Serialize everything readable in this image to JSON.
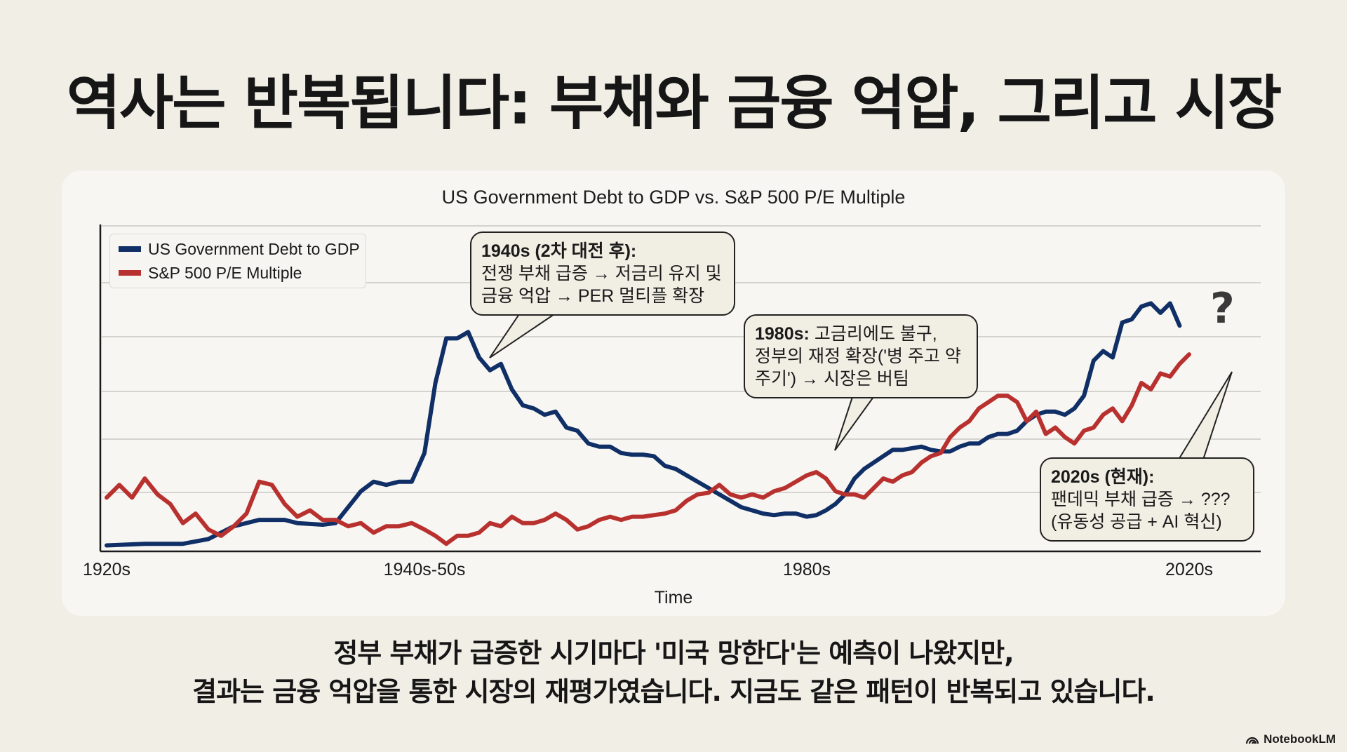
{
  "page": {
    "title": "역사는 반복됩니다: 부채와 금융 억압, 그리고 시장",
    "caption_line1": "정부 부채가 급증한 시기마다 '미국 망한다'는 예측이 나왔지만,",
    "caption_line2": "결과는 금융 억압을 통한 시장의 재평가였습니다. 지금도 같은 패턴이 반복되고 있습니다.",
    "brand": "NotebookLM"
  },
  "chart_data": {
    "type": "line",
    "title": "US Government Debt to GDP vs. S&P 500 P/E Multiple",
    "xlabel": "Time",
    "ylabel": "",
    "x_tick_labels": [
      "1920s",
      "1940s-50s",
      "1980s",
      "2020s"
    ],
    "x_ticks": [
      1920,
      1945,
      1980,
      2020
    ],
    "xlim": [
      1920,
      2026
    ],
    "ylim": [
      0,
      100
    ],
    "grid": true,
    "legend_position": "top-left",
    "colors": {
      "debt": "#0f2f66",
      "pe": "#b8312f"
    },
    "series": [
      {
        "name": "US Government Debt to GDP",
        "key": "debt",
        "points": [
          [
            1920,
            1
          ],
          [
            1923,
            1.5
          ],
          [
            1926,
            1.5
          ],
          [
            1928,
            3
          ],
          [
            1930,
            7
          ],
          [
            1932,
            9
          ],
          [
            1934,
            9
          ],
          [
            1935,
            8
          ],
          [
            1937,
            7.5
          ],
          [
            1938,
            8
          ],
          [
            1940,
            18
          ],
          [
            1941,
            21
          ],
          [
            1942,
            20
          ],
          [
            1943,
            21
          ],
          [
            1944,
            21
          ],
          [
            1945,
            30
          ],
          [
            1946,
            52
          ],
          [
            1947,
            66
          ],
          [
            1948,
            66
          ],
          [
            1949,
            68
          ],
          [
            1950,
            60
          ],
          [
            1951,
            56
          ],
          [
            1952,
            58
          ],
          [
            1953,
            50
          ],
          [
            1954,
            45
          ],
          [
            1955,
            44
          ],
          [
            1956,
            42
          ],
          [
            1957,
            43
          ],
          [
            1958,
            38
          ],
          [
            1959,
            37
          ],
          [
            1960,
            33
          ],
          [
            1961,
            32
          ],
          [
            1962,
            32
          ],
          [
            1963,
            30
          ],
          [
            1964,
            29.5
          ],
          [
            1965,
            29.5
          ],
          [
            1966,
            29
          ],
          [
            1967,
            26
          ],
          [
            1968,
            25
          ],
          [
            1969,
            23
          ],
          [
            1970,
            21
          ],
          [
            1971,
            19
          ],
          [
            1972,
            17
          ],
          [
            1973,
            15
          ],
          [
            1974,
            13
          ],
          [
            1975,
            12
          ],
          [
            1976,
            11
          ],
          [
            1977,
            10.5
          ],
          [
            1978,
            11
          ],
          [
            1979,
            11
          ],
          [
            1980,
            10
          ],
          [
            1981,
            10.5
          ],
          [
            1982,
            12
          ],
          [
            1983,
            14
          ],
          [
            1984,
            17
          ],
          [
            1985,
            22
          ],
          [
            1986,
            25
          ],
          [
            1987,
            27
          ],
          [
            1988,
            29
          ],
          [
            1989,
            31
          ],
          [
            1990,
            31
          ],
          [
            1991,
            31.5
          ],
          [
            1992,
            32
          ],
          [
            1993,
            31
          ],
          [
            1994,
            30.5
          ],
          [
            1995,
            30.5
          ],
          [
            1996,
            32
          ],
          [
            1997,
            33
          ],
          [
            1998,
            33
          ],
          [
            1999,
            35
          ],
          [
            2000,
            36
          ],
          [
            2001,
            36
          ],
          [
            2002,
            37
          ],
          [
            2003,
            40
          ],
          [
            2004,
            42
          ],
          [
            2005,
            43
          ],
          [
            2006,
            43
          ],
          [
            2007,
            42
          ],
          [
            2008,
            44
          ],
          [
            2009,
            48
          ],
          [
            2010,
            59
          ],
          [
            2011,
            62
          ],
          [
            2012,
            60
          ],
          [
            2013,
            71
          ],
          [
            2014,
            72
          ],
          [
            2015,
            76
          ],
          [
            2016,
            77
          ],
          [
            2017,
            74
          ],
          [
            2018,
            77
          ],
          [
            2019,
            70
          ]
        ]
      },
      {
        "name": "S&P 500 P/E Multiple",
        "key": "pe",
        "points": [
          [
            1920,
            16
          ],
          [
            1921,
            20
          ],
          [
            1922,
            16
          ],
          [
            1923,
            22
          ],
          [
            1924,
            17
          ],
          [
            1925,
            14
          ],
          [
            1926,
            8
          ],
          [
            1927,
            11
          ],
          [
            1928,
            6
          ],
          [
            1929,
            4
          ],
          [
            1930,
            7
          ],
          [
            1931,
            11
          ],
          [
            1932,
            21
          ],
          [
            1933,
            20
          ],
          [
            1934,
            14
          ],
          [
            1935,
            10
          ],
          [
            1936,
            12
          ],
          [
            1937,
            9
          ],
          [
            1938,
            9
          ],
          [
            1939,
            7
          ],
          [
            1940,
            8
          ],
          [
            1941,
            5
          ],
          [
            1942,
            7
          ],
          [
            1943,
            7
          ],
          [
            1944,
            8
          ],
          [
            1945,
            6
          ],
          [
            1946,
            4
          ],
          [
            1947,
            1.5
          ],
          [
            1948,
            4
          ],
          [
            1949,
            4
          ],
          [
            1950,
            5
          ],
          [
            1951,
            8
          ],
          [
            1952,
            7
          ],
          [
            1953,
            10
          ],
          [
            1954,
            8
          ],
          [
            1955,
            8
          ],
          [
            1956,
            9
          ],
          [
            1957,
            11
          ],
          [
            1958,
            9
          ],
          [
            1959,
            6
          ],
          [
            1960,
            7
          ],
          [
            1961,
            9
          ],
          [
            1962,
            10
          ],
          [
            1963,
            9
          ],
          [
            1964,
            10
          ],
          [
            1965,
            10
          ],
          [
            1966,
            10.5
          ],
          [
            1967,
            11
          ],
          [
            1968,
            12
          ],
          [
            1969,
            15
          ],
          [
            1970,
            17
          ],
          [
            1971,
            17.5
          ],
          [
            1972,
            20
          ],
          [
            1973,
            17
          ],
          [
            1974,
            16
          ],
          [
            1975,
            17
          ],
          [
            1976,
            16
          ],
          [
            1977,
            18
          ],
          [
            1978,
            19
          ],
          [
            1979,
            21
          ],
          [
            1980,
            23
          ],
          [
            1981,
            24
          ],
          [
            1982,
            22
          ],
          [
            1983,
            18
          ],
          [
            1984,
            17
          ],
          [
            1985,
            17
          ],
          [
            1986,
            16
          ],
          [
            1987,
            19
          ],
          [
            1988,
            22
          ],
          [
            1989,
            21
          ],
          [
            1990,
            23
          ],
          [
            1991,
            24
          ],
          [
            1992,
            27
          ],
          [
            1993,
            29
          ],
          [
            1994,
            30
          ],
          [
            1995,
            35
          ],
          [
            1996,
            38
          ],
          [
            1997,
            40
          ],
          [
            1998,
            44
          ],
          [
            1999,
            46
          ],
          [
            2000,
            48
          ],
          [
            2001,
            48
          ],
          [
            2002,
            46
          ],
          [
            2003,
            40
          ],
          [
            2004,
            43
          ],
          [
            2005,
            36
          ],
          [
            2006,
            38
          ],
          [
            2007,
            35
          ],
          [
            2008,
            33
          ],
          [
            2009,
            37
          ],
          [
            2010,
            38
          ],
          [
            2011,
            42
          ],
          [
            2012,
            44
          ],
          [
            2013,
            40
          ],
          [
            2014,
            45
          ],
          [
            2015,
            52
          ],
          [
            2016,
            50
          ],
          [
            2017,
            55
          ],
          [
            2018,
            54
          ],
          [
            2019,
            58
          ],
          [
            2020,
            61
          ]
        ]
      }
    ],
    "annotations": [
      {
        "key": "a1940",
        "heading": "1940s (2차 대전 후):",
        "line1": "전쟁 부채 급증 → 저금리 유지 및",
        "line2": "금융 억압 → PER 멀티플 확장"
      },
      {
        "key": "a1980",
        "heading": "1980s:",
        "line1": "고금리에도 불구,",
        "line2": "정부의 재정 확장('병 주고 약",
        "line3": "주기') → 시장은 버팀"
      },
      {
        "key": "a2020",
        "heading": "2020s (현재):",
        "line1": "팬데믹 부채 급증 → ???",
        "line2": "(유동성 공급 + AI 혁신)"
      }
    ],
    "question_mark": "?"
  }
}
